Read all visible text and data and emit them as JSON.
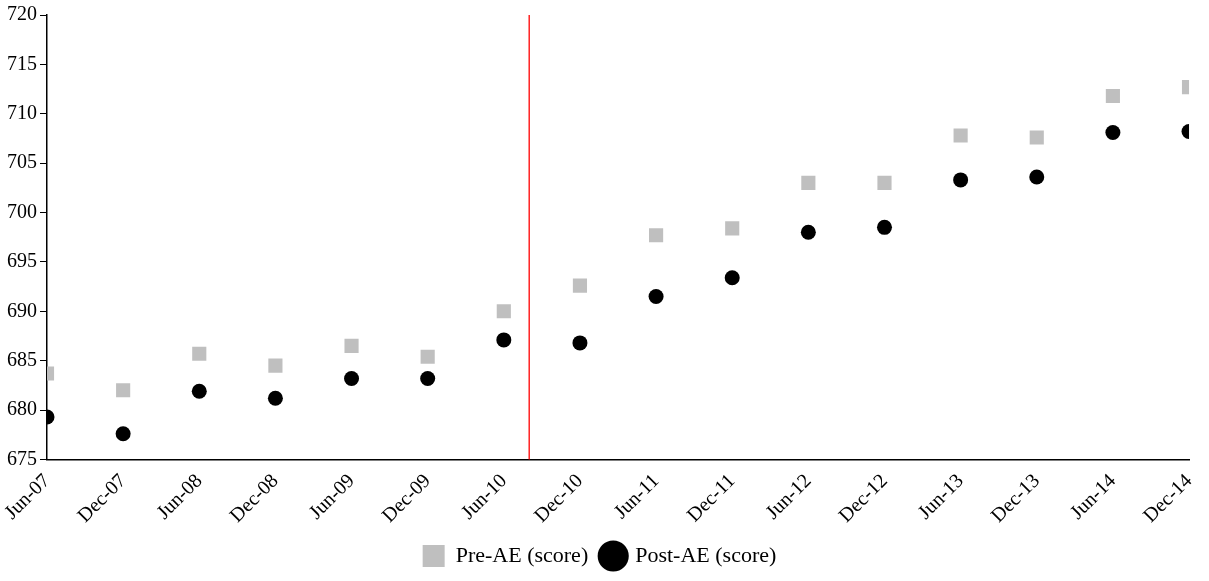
{
  "chart_data": {
    "type": "scatter",
    "x": [
      "2007-06",
      "2007-12",
      "2008-06",
      "2008-12",
      "2009-06",
      "2009-12",
      "2010-06",
      "2010-12",
      "2011-06",
      "2011-12",
      "2012-06",
      "2012-12",
      "2013-06",
      "2013-12",
      "2014-06",
      "2014-12"
    ],
    "series": [
      {
        "name": "Pre-AE (score)",
        "color": "#bfbfbf",
        "marker": "square",
        "values": [
          683.7,
          682.0,
          685.7,
          684.5,
          686.5,
          685.4,
          690.0,
          692.6,
          697.7,
          698.4,
          703.0,
          703.0,
          707.8,
          707.6,
          711.8,
          712.7
        ]
      },
      {
        "name": "Post-AE (score)",
        "color": "#000000",
        "marker": "circle",
        "values": [
          679.3,
          677.6,
          681.9,
          681.2,
          683.2,
          683.2,
          687.1,
          686.8,
          691.5,
          693.4,
          698.0,
          698.5,
          703.3,
          703.6,
          708.1,
          708.2
        ]
      }
    ],
    "xlim": [
      "2007-06",
      "2014-12"
    ],
    "xticks": [
      {
        "value": "2007-06",
        "label": "Jun-07"
      },
      {
        "value": "2007-12",
        "label": "Dec-07"
      },
      {
        "value": "2008-06",
        "label": "Jun-08"
      },
      {
        "value": "2008-12",
        "label": "Dec-08"
      },
      {
        "value": "2009-06",
        "label": "Jun-09"
      },
      {
        "value": "2009-12",
        "label": "Dec-09"
      },
      {
        "value": "2010-06",
        "label": "Jun-10"
      },
      {
        "value": "2010-12",
        "label": "Dec-10"
      },
      {
        "value": "2011-06",
        "label": "Jun-11"
      },
      {
        "value": "2011-12",
        "label": "Dec-11"
      },
      {
        "value": "2012-06",
        "label": "Jun-12"
      },
      {
        "value": "2012-12",
        "label": "Dec-12"
      },
      {
        "value": "2013-06",
        "label": "Jun-13"
      },
      {
        "value": "2013-12",
        "label": "Dec-13"
      },
      {
        "value": "2014-06",
        "label": "Jun-14"
      },
      {
        "value": "2014-12",
        "label": "Dec-14"
      }
    ],
    "ylim": [
      675,
      720
    ],
    "yticks": [
      675,
      680,
      685,
      690,
      695,
      700,
      705,
      710,
      715,
      720
    ],
    "ref_lines": [
      {
        "axis": "x",
        "value": "2010-08",
        "color": "#ff0000"
      }
    ],
    "grid": false,
    "legend": "bottom"
  }
}
